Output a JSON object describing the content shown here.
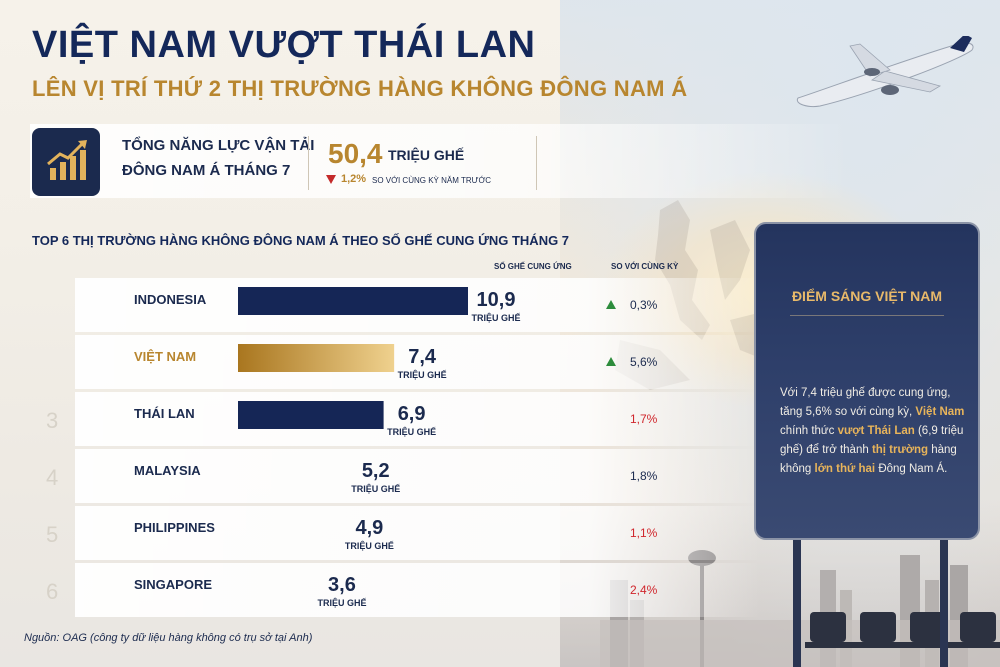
{
  "header": {
    "title": "VIỆT NAM VƯỢT THÁI LAN",
    "subtitle": "LÊN VỊ TRÍ THỨ 2 THỊ TRƯỜNG HÀNG KHÔNG ĐÔNG NAM Á"
  },
  "capacity": {
    "label_line1": "TỔNG NĂNG LỰC VẬN TẢI",
    "label_line2": "ĐÔNG NAM Á THÁNG 7",
    "value": "50,4",
    "unit": "TRIỆU GHẾ",
    "change": "1,2%",
    "change_note": "SO VỚI CÙNG KỲ NĂM TRƯỚC",
    "change_direction": "down",
    "icon": "growth-chart-icon"
  },
  "chart_data": {
    "type": "bar",
    "title": "TOP 6 THỊ TRƯỜNG HÀNG KHÔNG ĐÔNG NAM Á THEO SỐ GHẾ CUNG ỨNG THÁNG 7",
    "value_header": "SỐ GHẾ CUNG ỨNG",
    "change_header": "SO VỚI CÙNG KỲ",
    "unit": "TRIỆU GHẾ",
    "ranks": [
      "",
      "",
      "3",
      "4",
      "5",
      "6"
    ],
    "categories": [
      "INDONESIA",
      "VIỆT NAM",
      "THÁI LAN",
      "MALAYSIA",
      "PHILIPPINES",
      "SINGAPORE"
    ],
    "values": [
      10.9,
      7.4,
      6.9,
      5.2,
      4.9,
      3.6
    ],
    "value_labels": [
      "10,9",
      "7,4",
      "6,9",
      "5,2",
      "4,9",
      "3,6"
    ],
    "changes": [
      "0,3%",
      "5,6%",
      "1,7%",
      "1,8%",
      "1,1%",
      "2,4%"
    ],
    "change_direction": [
      "up",
      "up",
      "",
      "",
      "",
      ""
    ],
    "visible_bars": [
      true,
      true,
      true,
      false,
      false,
      false
    ],
    "highlight": "VIỆT NAM",
    "colors": {
      "bar": "#152656",
      "highlight_start": "#a9761f",
      "highlight_end": "#efd18e",
      "up": "#2d8c3c",
      "down": "#d0262c",
      "neutral": "#1b2a4e"
    }
  },
  "panel": {
    "title": "ĐIỂM SÁNG VIỆT NAM",
    "text": [
      {
        "t": "Với 7,4 triệu ghế được cung ứng, tăng 5,6% so với cùng kỳ, ",
        "hl": false
      },
      {
        "t": "Việt Nam",
        "hl": true
      },
      {
        "t": " chính thức ",
        "hl": false
      },
      {
        "t": "vượt Thái Lan",
        "hl": true
      },
      {
        "t": " (6,9 triệu ghế) để trở thành ",
        "hl": false
      },
      {
        "t": "thị trường",
        "hl": true
      },
      {
        "t": " hàng không ",
        "hl": false
      },
      {
        "t": "lớn thứ hai",
        "hl": true
      },
      {
        "t": " Đông Nam Á.",
        "hl": false
      }
    ]
  },
  "source": "Nguồn: OAG (công ty dữ liệu hàng không có trụ sở tại Anh)"
}
